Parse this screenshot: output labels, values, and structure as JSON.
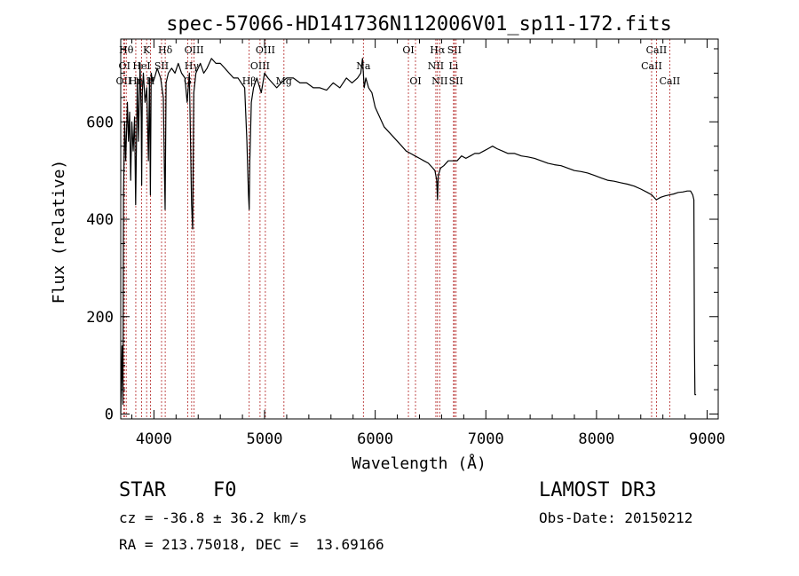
{
  "chart_data": {
    "type": "line",
    "title": "spec-57066-HD141736N112006V01_sp11-172.fits",
    "xlabel": "Wavelength (Å)",
    "ylabel": "Flux (relative)",
    "xlim": [
      3700,
      9100
    ],
    "ylim": [
      -10,
      770
    ],
    "xticks": [
      4000,
      5000,
      6000,
      7000,
      8000,
      9000
    ],
    "yticks": [
      0,
      200,
      400,
      600
    ],
    "xtick_labels": [
      "4000",
      "5000",
      "6000",
      "7000",
      "8000",
      "9000"
    ],
    "ytick_labels": [
      "0",
      "200",
      "400",
      "600"
    ],
    "grid": false,
    "series": [
      {
        "name": "spectrum",
        "x": [
          3700,
          3712,
          3716,
          3720,
          3725,
          3735,
          3745,
          3760,
          3770,
          3780,
          3790,
          3800,
          3812,
          3825,
          3835,
          3850,
          3860,
          3875,
          3885,
          3889,
          3895,
          3905,
          3920,
          3935,
          3950,
          3960,
          3968,
          3975,
          3990,
          4005,
          4030,
          4060,
          4085,
          4095,
          4101,
          4110,
          4130,
          4160,
          4190,
          4220,
          4250,
          4280,
          4300,
          4320,
          4340,
          4350,
          4360,
          4380,
          4420,
          4450,
          4480,
          4520,
          4560,
          4600,
          4640,
          4680,
          4720,
          4760,
          4790,
          4820,
          4840,
          4855,
          4861,
          4867,
          4880,
          4900,
          4930,
          4970,
          5000,
          5030,
          5070,
          5110,
          5150,
          5200,
          5260,
          5320,
          5380,
          5440,
          5500,
          5560,
          5620,
          5680,
          5740,
          5790,
          5840,
          5870,
          5885,
          5893,
          5900,
          5915,
          5940,
          5970,
          6000,
          6040,
          6080,
          6120,
          6160,
          6200,
          6240,
          6280,
          6320,
          6360,
          6400,
          6440,
          6480,
          6520,
          6540,
          6556,
          6563,
          6570,
          6590,
          6620,
          6660,
          6700,
          6740,
          6780,
          6820,
          6860,
          6900,
          6940,
          6980,
          7020,
          7060,
          7100,
          7150,
          7200,
          7260,
          7320,
          7380,
          7440,
          7500,
          7560,
          7620,
          7680,
          7740,
          7800,
          7860,
          7920,
          7980,
          8040,
          8100,
          8160,
          8220,
          8280,
          8340,
          8400,
          8460,
          8500,
          8540,
          8580,
          8620,
          8660,
          8700,
          8740,
          8780,
          8820,
          8850,
          8870,
          8880,
          8885,
          8890,
          8900
        ],
        "y": [
          2,
          140,
          80,
          20,
          450,
          600,
          520,
          640,
          560,
          620,
          480,
          600,
          540,
          610,
          430,
          690,
          560,
          720,
          610,
          470,
          660,
          700,
          640,
          670,
          520,
          690,
          450,
          700,
          680,
          690,
          710,
          690,
          650,
          500,
          420,
          680,
          700,
          710,
          700,
          720,
          700,
          690,
          640,
          700,
          430,
          380,
          660,
          700,
          720,
          700,
          710,
          730,
          720,
          720,
          710,
          700,
          690,
          690,
          680,
          670,
          560,
          450,
          420,
          520,
          640,
          670,
          690,
          660,
          700,
          690,
          680,
          670,
          680,
          690,
          690,
          680,
          680,
          670,
          670,
          665,
          680,
          670,
          690,
          680,
          690,
          700,
          730,
          700,
          670,
          690,
          670,
          660,
          630,
          610,
          590,
          580,
          570,
          560,
          550,
          540,
          535,
          530,
          525,
          520,
          515,
          505,
          500,
          480,
          440,
          490,
          505,
          510,
          520,
          520,
          520,
          530,
          525,
          530,
          535,
          535,
          540,
          545,
          550,
          545,
          540,
          535,
          535,
          530,
          528,
          525,
          520,
          515,
          512,
          510,
          505,
          500,
          498,
          495,
          490,
          485,
          480,
          478,
          475,
          472,
          468,
          462,
          455,
          450,
          440,
          445,
          448,
          450,
          452,
          455,
          456,
          458,
          458,
          450,
          440,
          150,
          40,
          40
        ]
      }
    ],
    "lines": [
      {
        "label": "OII",
        "wave": 3727,
        "row": 3
      },
      {
        "label": "OI",
        "wave": 3734,
        "row": 2
      },
      {
        "label": "Hθ",
        "wave": 3750,
        "row": 1
      },
      {
        "label": "Hη",
        "wave": 3836,
        "row": 3
      },
      {
        "label": "HeI",
        "wave": 3889,
        "row": 2
      },
      {
        "label": "K",
        "wave": 3934,
        "row": 1
      },
      {
        "label": "H",
        "wave": 3969,
        "row": 3
      },
      {
        "label": "SII",
        "wave": 4069,
        "row": 2
      },
      {
        "label": "Hδ",
        "wave": 4102,
        "row": 1
      },
      {
        "label": "Hγ",
        "wave": 4341,
        "row": 2
      },
      {
        "label": "G",
        "wave": 4305,
        "row": 3
      },
      {
        "label": "OIII",
        "wave": 4363,
        "row": 1
      },
      {
        "label": "Hβ",
        "wave": 4861,
        "row": 3
      },
      {
        "label": "OIII",
        "wave": 4959,
        "row": 2
      },
      {
        "label": "OIII",
        "wave": 5007,
        "row": 1
      },
      {
        "label": "Mg",
        "wave": 5175,
        "row": 3
      },
      {
        "label": "Na",
        "wave": 5893,
        "row": 2
      },
      {
        "label": "OI",
        "wave": 6300,
        "row": 1
      },
      {
        "label": "OI",
        "wave": 6364,
        "row": 3
      },
      {
        "label": "NII",
        "wave": 6548,
        "row": 2
      },
      {
        "label": "Hα",
        "wave": 6563,
        "row": 1
      },
      {
        "label": "NII",
        "wave": 6583,
        "row": 3
      },
      {
        "label": "SII",
        "wave": 6716,
        "row": 1
      },
      {
        "label": "Li",
        "wave": 6708,
        "row": 2
      },
      {
        "label": "SII",
        "wave": 6731,
        "row": 3
      },
      {
        "label": "CaII",
        "wave": 8498,
        "row": 2
      },
      {
        "label": "CaII",
        "wave": 8542,
        "row": 1
      },
      {
        "label": "CaII",
        "wave": 8662,
        "row": 3
      }
    ]
  },
  "info": {
    "object_class": "STAR",
    "subclass": "F0",
    "survey": "LAMOST DR3",
    "redshift": "cz = -36.8 ± 36.2 km/s",
    "obs_date": "Obs-Date: 20150212",
    "coords": "RA = 213.75018, DEC =  13.69166"
  }
}
